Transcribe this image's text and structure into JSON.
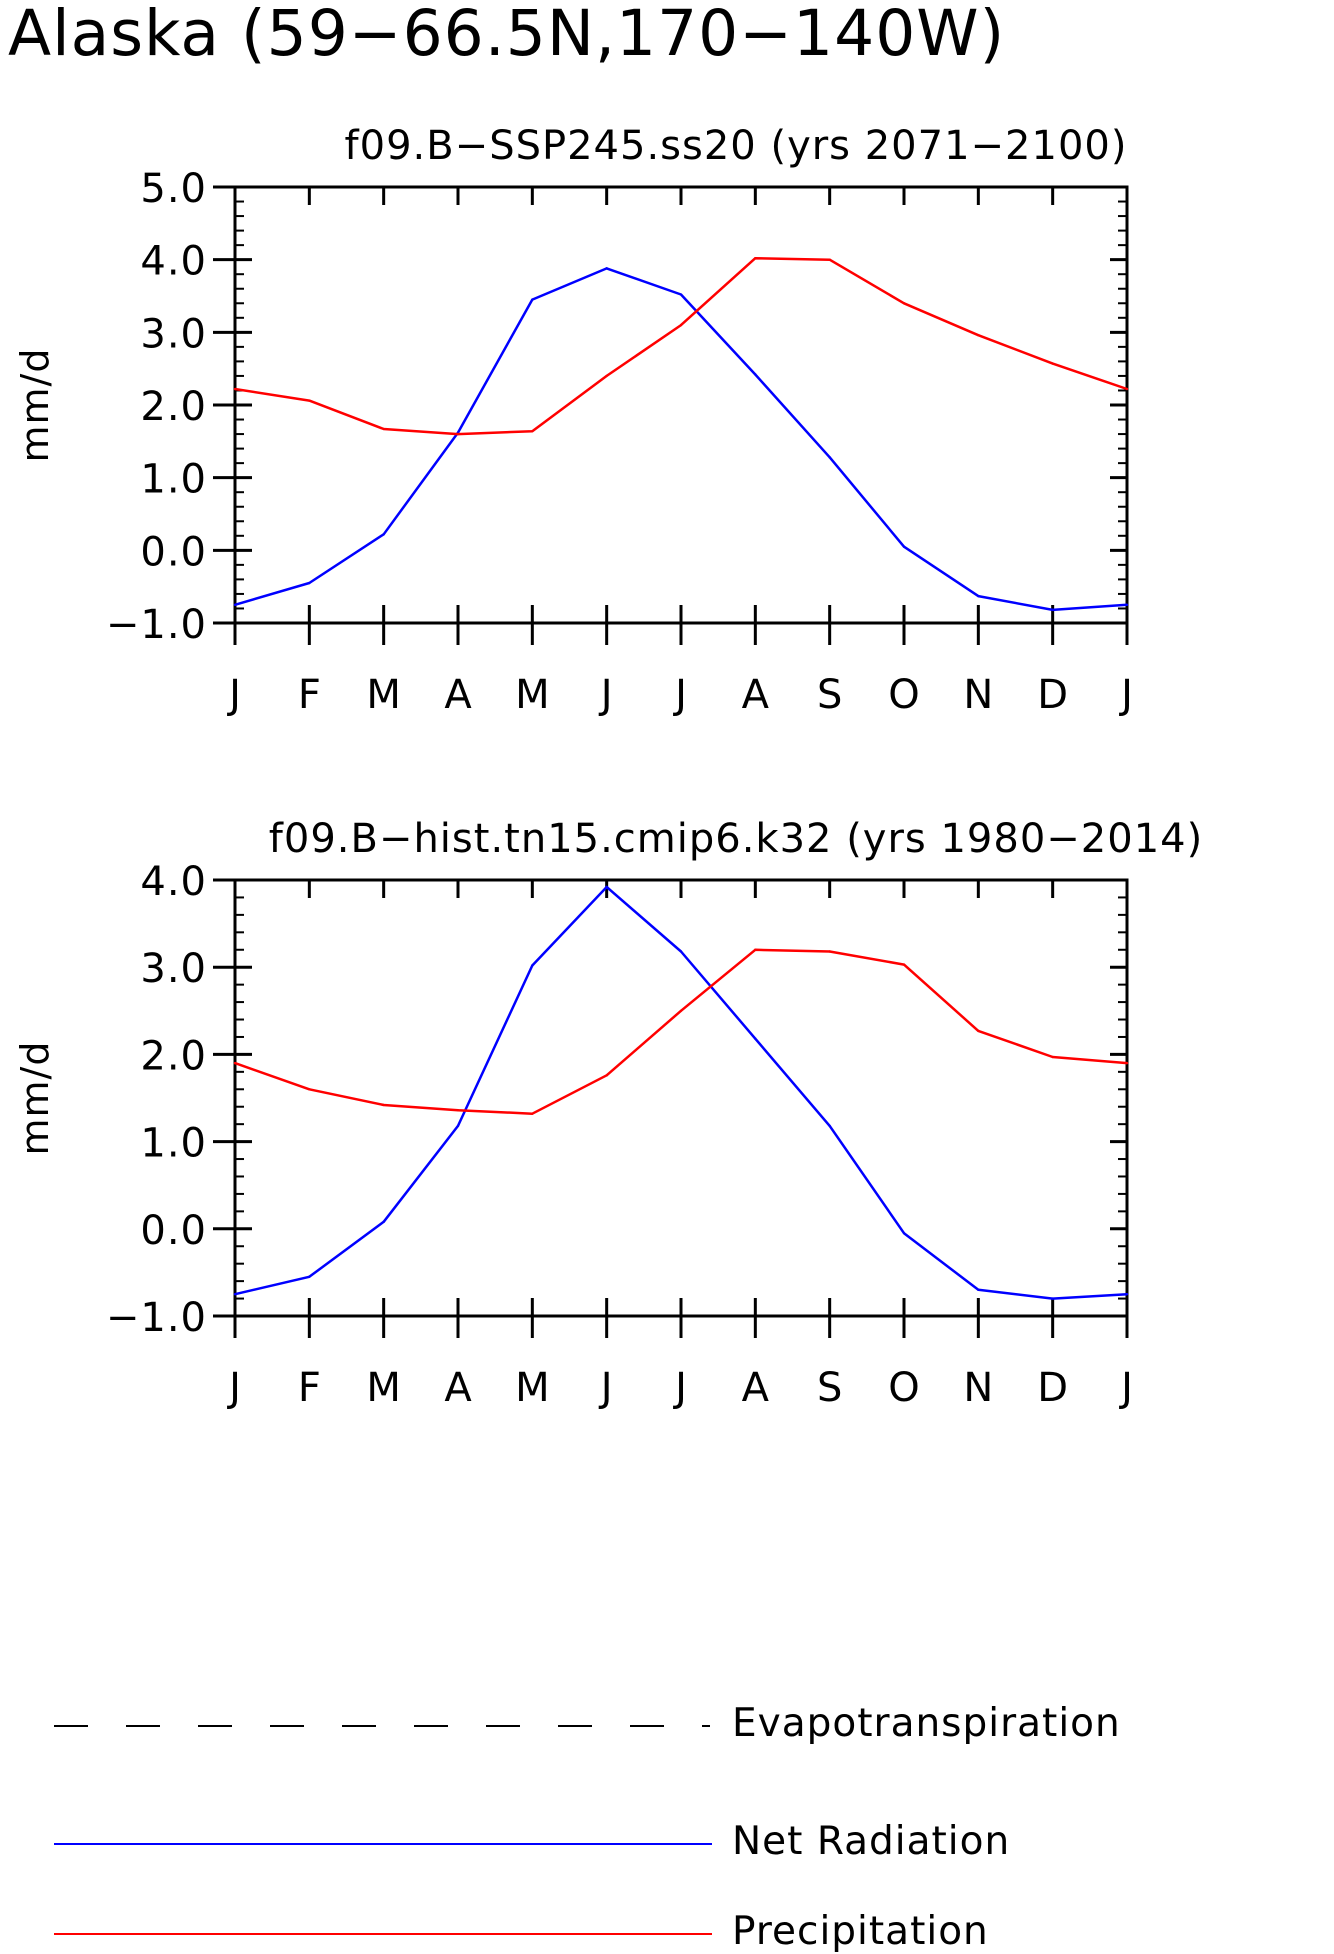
{
  "page": {
    "title": "Alaska (59−66.5N,170−140W)"
  },
  "legend": [
    {
      "label": "Evapotranspiration",
      "color": "#000000",
      "style": "dashed"
    },
    {
      "label": "Net Radiation",
      "color": "#0000ff",
      "style": "solid"
    },
    {
      "label": "Precipitation",
      "color": "#ff0000",
      "style": "solid"
    }
  ],
  "chart_data": [
    {
      "type": "line",
      "title": "f09.B−SSP245.ss20 (yrs 2071−2100)",
      "ylabel": "mm/d",
      "xlabel": "",
      "categories": [
        "J",
        "F",
        "M",
        "A",
        "M",
        "J",
        "J",
        "A",
        "S",
        "O",
        "N",
        "D",
        "J"
      ],
      "ylim": [
        -1.0,
        5.0
      ],
      "yticks": [
        "−1.0",
        "0.0",
        "1.0",
        "2.0",
        "3.0",
        "4.0",
        "5.0"
      ],
      "grid": false,
      "series": [
        {
          "name": "Net Radiation",
          "color": "#0000ff",
          "values": [
            -0.75,
            -0.45,
            0.22,
            1.62,
            3.45,
            3.88,
            3.52,
            2.42,
            1.28,
            0.05,
            -0.63,
            -0.82,
            -0.75
          ]
        },
        {
          "name": "Precipitation",
          "color": "#ff0000",
          "values": [
            2.22,
            2.06,
            1.67,
            1.6,
            1.64,
            2.4,
            3.1,
            4.02,
            4.0,
            3.4,
            2.96,
            2.57,
            2.22
          ]
        }
      ]
    },
    {
      "type": "line",
      "title": "f09.B−hist.tn15.cmip6.k32 (yrs 1980−2014)",
      "ylabel": "mm/d",
      "xlabel": "",
      "categories": [
        "J",
        "F",
        "M",
        "A",
        "M",
        "J",
        "J",
        "A",
        "S",
        "O",
        "N",
        "D",
        "J"
      ],
      "ylim": [
        -1.0,
        4.0
      ],
      "yticks": [
        "−1.0",
        "0.0",
        "1.0",
        "2.0",
        "3.0",
        "4.0"
      ],
      "grid": false,
      "series": [
        {
          "name": "Net Radiation",
          "color": "#0000ff",
          "values": [
            -0.75,
            -0.55,
            0.08,
            1.18,
            3.02,
            3.92,
            3.18,
            2.18,
            1.18,
            -0.05,
            -0.7,
            -0.8,
            -0.75
          ]
        },
        {
          "name": "Precipitation",
          "color": "#ff0000",
          "values": [
            1.9,
            1.6,
            1.42,
            1.36,
            1.32,
            1.76,
            2.5,
            3.2,
            3.18,
            3.03,
            2.27,
            1.97,
            1.9
          ]
        }
      ]
    }
  ]
}
